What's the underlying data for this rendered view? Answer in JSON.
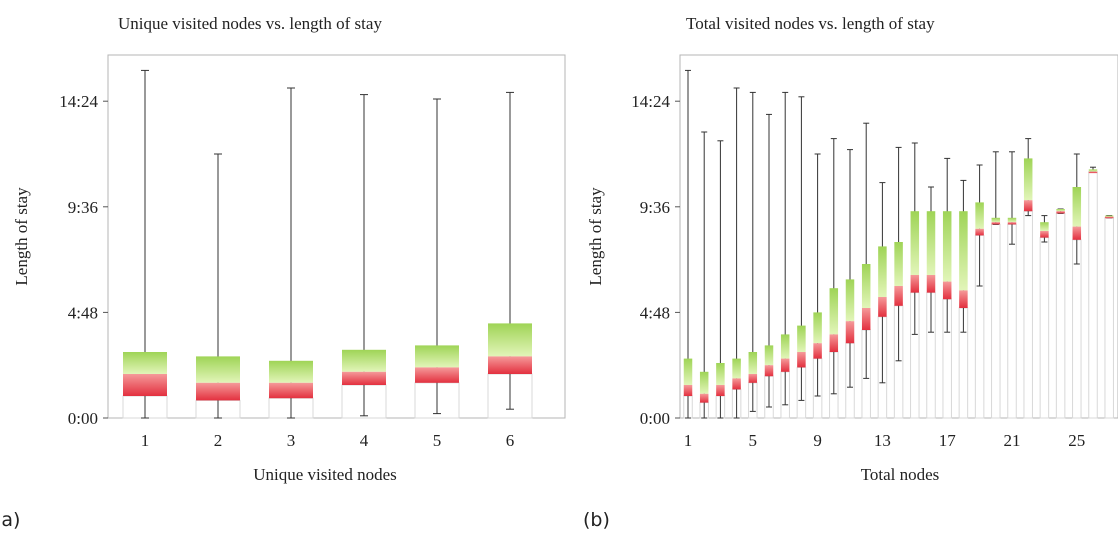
{
  "panels": [
    {
      "label": "(a)"
    },
    {
      "label": "(b)"
    }
  ],
  "colors": {
    "green_top": "#9fd456",
    "green_bottom": "#e2f5b9",
    "red_top": "#f59a9a",
    "red_bottom": "#e3303f",
    "whisker": "#333333",
    "frame": "#b5b5b5"
  },
  "chart_data": [
    {
      "type": "box",
      "title": "Unique visited nodes vs. length of stay",
      "xlabel": "Unique visited nodes",
      "ylabel": "Length of stay",
      "y_unit": "hours",
      "ylim": [
        0,
        16.5
      ],
      "yticks": [
        0,
        4.8,
        9.6,
        14.4
      ],
      "ytick_labels": [
        "0:00",
        "4:48",
        "9:36",
        "14:24"
      ],
      "categories": [
        1,
        2,
        3,
        4,
        5,
        6
      ],
      "xtick_labels": [
        "1",
        "2",
        "3",
        "4",
        "5",
        "6"
      ],
      "min": [
        0.0,
        0.0,
        0.0,
        0.1,
        0.2,
        0.4
      ],
      "q1": [
        1.0,
        0.8,
        0.9,
        1.5,
        1.6,
        2.0
      ],
      "median": [
        2.0,
        1.6,
        1.6,
        2.1,
        2.3,
        2.8
      ],
      "q3": [
        3.0,
        2.8,
        2.6,
        3.1,
        3.3,
        4.3
      ],
      "max": [
        15.8,
        12.0,
        15.0,
        14.7,
        14.5,
        14.8
      ]
    },
    {
      "type": "box",
      "title": "Total visited nodes vs. length of stay",
      "xlabel": "Total nodes",
      "ylabel": "Length of stay",
      "y_unit": "hours",
      "ylim": [
        0,
        16.5
      ],
      "yticks": [
        0,
        4.8,
        9.6,
        14.4
      ],
      "ytick_labels": [
        "0:00",
        "4:48",
        "9:36",
        "14:24"
      ],
      "categories": [
        1,
        2,
        3,
        4,
        5,
        6,
        7,
        8,
        9,
        10,
        11,
        12,
        13,
        14,
        15,
        16,
        17,
        18,
        19,
        20,
        21,
        22,
        23,
        24,
        25,
        26,
        27
      ],
      "xtick_labels": [
        "1",
        "5",
        "9",
        "13",
        "17",
        "21",
        "25"
      ],
      "min": [
        0.0,
        0.0,
        0.0,
        0.0,
        0.3,
        0.5,
        0.6,
        0.8,
        1.0,
        1.1,
        1.4,
        1.8,
        1.6,
        2.6,
        3.8,
        3.9,
        3.9,
        3.9,
        6.0,
        8.8,
        7.9,
        9.2,
        8.0,
        9.3,
        7.0,
        11.2,
        9.1
      ],
      "q1": [
        1.0,
        0.7,
        1.0,
        1.3,
        1.6,
        1.9,
        2.1,
        2.3,
        2.7,
        3.0,
        3.4,
        4.0,
        4.6,
        5.1,
        5.7,
        5.7,
        5.4,
        5.0,
        8.3,
        8.8,
        8.8,
        9.4,
        8.2,
        9.3,
        8.1,
        11.2,
        9.1
      ],
      "median": [
        1.5,
        1.1,
        1.5,
        1.8,
        2.0,
        2.4,
        2.7,
        3.0,
        3.4,
        3.8,
        4.4,
        5.0,
        5.5,
        6.0,
        6.5,
        6.5,
        6.2,
        5.8,
        8.6,
        8.9,
        8.9,
        9.9,
        8.5,
        9.4,
        8.7,
        11.2,
        9.15
      ],
      "q3": [
        2.7,
        2.1,
        2.5,
        2.7,
        3.0,
        3.3,
        3.8,
        4.2,
        4.8,
        5.9,
        6.3,
        7.0,
        7.8,
        8.0,
        9.4,
        9.4,
        9.4,
        9.4,
        9.8,
        9.1,
        9.1,
        11.8,
        8.9,
        9.5,
        10.5,
        11.3,
        9.2
      ],
      "max": [
        15.8,
        13.0,
        12.6,
        15.0,
        14.8,
        13.8,
        14.8,
        14.6,
        12.0,
        12.7,
        12.2,
        13.4,
        10.7,
        12.3,
        12.5,
        10.5,
        11.8,
        10.8,
        11.5,
        12.1,
        12.1,
        12.7,
        9.2,
        9.5,
        12.0,
        11.4,
        9.2
      ]
    }
  ]
}
